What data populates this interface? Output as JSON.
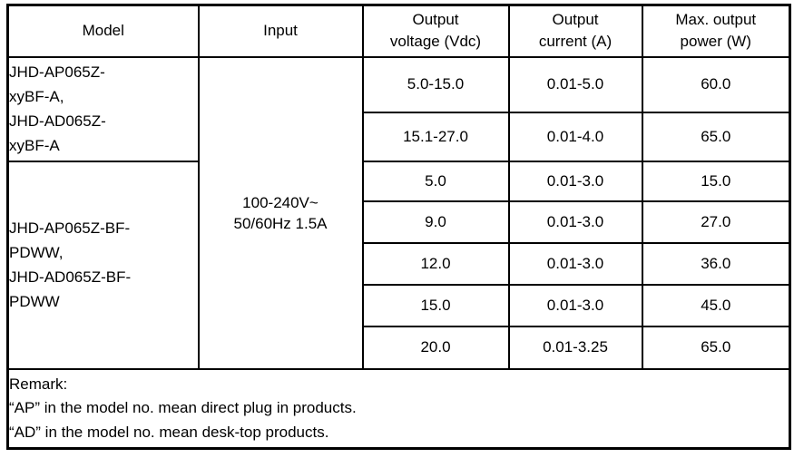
{
  "table": {
    "headers": {
      "model": "Model",
      "input": "Input",
      "voltage_lines": [
        "Output",
        "voltage (Vdc)"
      ],
      "current_lines": [
        "Output",
        "current (A)"
      ],
      "power_lines": [
        "Max. output",
        "power (W)"
      ]
    },
    "model_groups": [
      {
        "lines": [
          "JHD-AP065Z-",
          "xyBF-A,",
          "JHD-AD065Z-",
          "xyBF-A"
        ]
      },
      {
        "lines": [
          "JHD-AP065Z-BF-",
          "PDWW,",
          "JHD-AD065Z-BF-",
          "PDWW"
        ]
      }
    ],
    "input_lines": [
      "100-240V~",
      "50/60Hz 1.5A"
    ],
    "rows": [
      {
        "voltage": "5.0-15.0",
        "current": "0.01-5.0",
        "power": "60.0"
      },
      {
        "voltage": "15.1-27.0",
        "current": "0.01-4.0",
        "power": "65.0"
      },
      {
        "voltage": "5.0",
        "current": "0.01-3.0",
        "power": "15.0"
      },
      {
        "voltage": "9.0",
        "current": "0.01-3.0",
        "power": "27.0"
      },
      {
        "voltage": "12.0",
        "current": "0.01-3.0",
        "power": "36.0"
      },
      {
        "voltage": "15.0",
        "current": "0.01-3.0",
        "power": "45.0"
      },
      {
        "voltage": "20.0",
        "current": "0.01-3.25",
        "power": "65.0"
      }
    ],
    "remark": {
      "title": "Remark:",
      "lines": [
        "“AP” in the model no. mean direct plug in products.",
        "“AD” in the model no. mean desk-top products."
      ]
    }
  }
}
